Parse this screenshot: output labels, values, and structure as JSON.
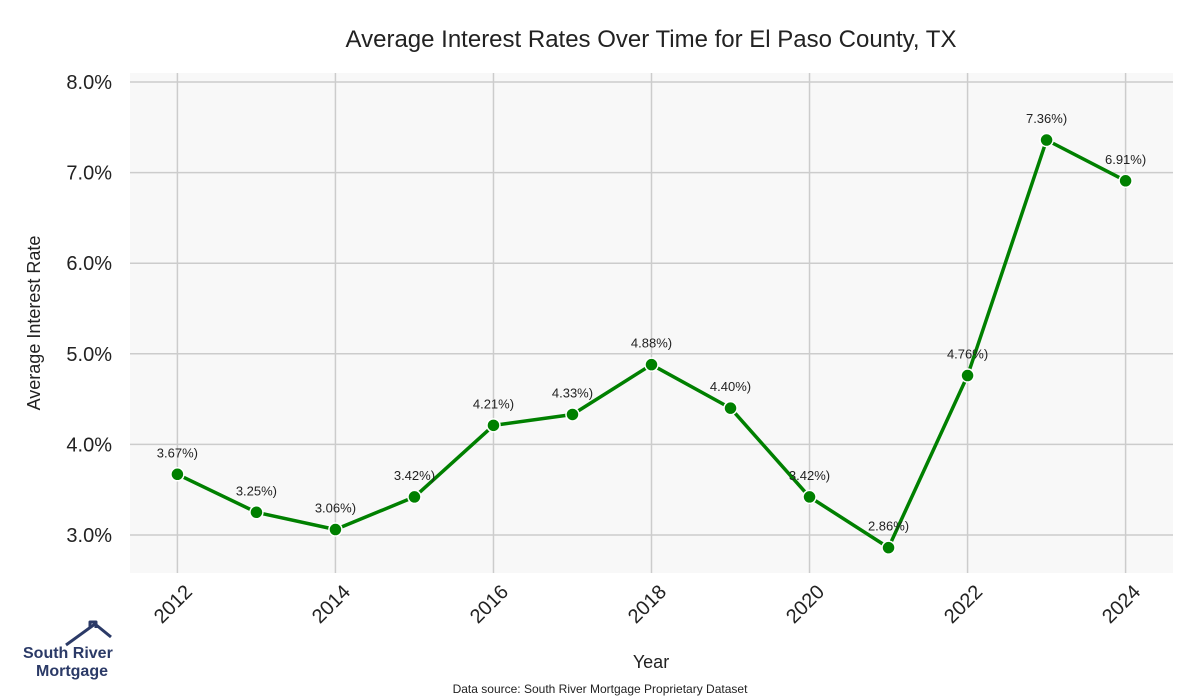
{
  "chart_data": {
    "type": "line",
    "title": "Average Interest Rates Over Time for El Paso County, TX",
    "xlabel": "Year",
    "ylabel": "Average Interest Rate",
    "x": [
      2012,
      2013,
      2014,
      2015,
      2016,
      2017,
      2018,
      2019,
      2020,
      2021,
      2022,
      2023,
      2024
    ],
    "series": [
      {
        "values": [
          3.67,
          3.25,
          3.06,
          3.42,
          4.21,
          4.33,
          4.88,
          4.4,
          3.42,
          2.86,
          4.76,
          7.36,
          6.91
        ],
        "point_labels": [
          "3.67%)",
          "3.25%)",
          "3.06%)",
          "3.42%)",
          "4.21%)",
          "4.33%)",
          "4.88%)",
          "4.40%)",
          "3.42%)",
          "2.86%)",
          "4.76%)",
          "7.36%)",
          "6.91%)"
        ],
        "color": "#008000"
      }
    ],
    "xticks": [
      2012,
      2014,
      2016,
      2018,
      2020,
      2022,
      2024
    ],
    "xtick_labels": [
      "2012",
      "2014",
      "2016",
      "2018",
      "2020",
      "2022",
      "2024"
    ],
    "yticks": [
      3.0,
      4.0,
      5.0,
      6.0,
      7.0,
      8.0
    ],
    "ytick_labels": [
      "3.0%",
      "4.0%",
      "5.0%",
      "6.0%",
      "7.0%",
      "8.0%"
    ],
    "xlim": [
      2011.4,
      2024.6
    ],
    "ylim": [
      2.58,
      8.1
    ],
    "grid": true,
    "plot_background": "#f8f8f8",
    "grid_color": "#cccccc",
    "source": "Data source: South River Mortgage Proprietary Dataset"
  },
  "logo": {
    "line1": "South River",
    "line2": "Mortgage",
    "color": "#2b3a67"
  }
}
